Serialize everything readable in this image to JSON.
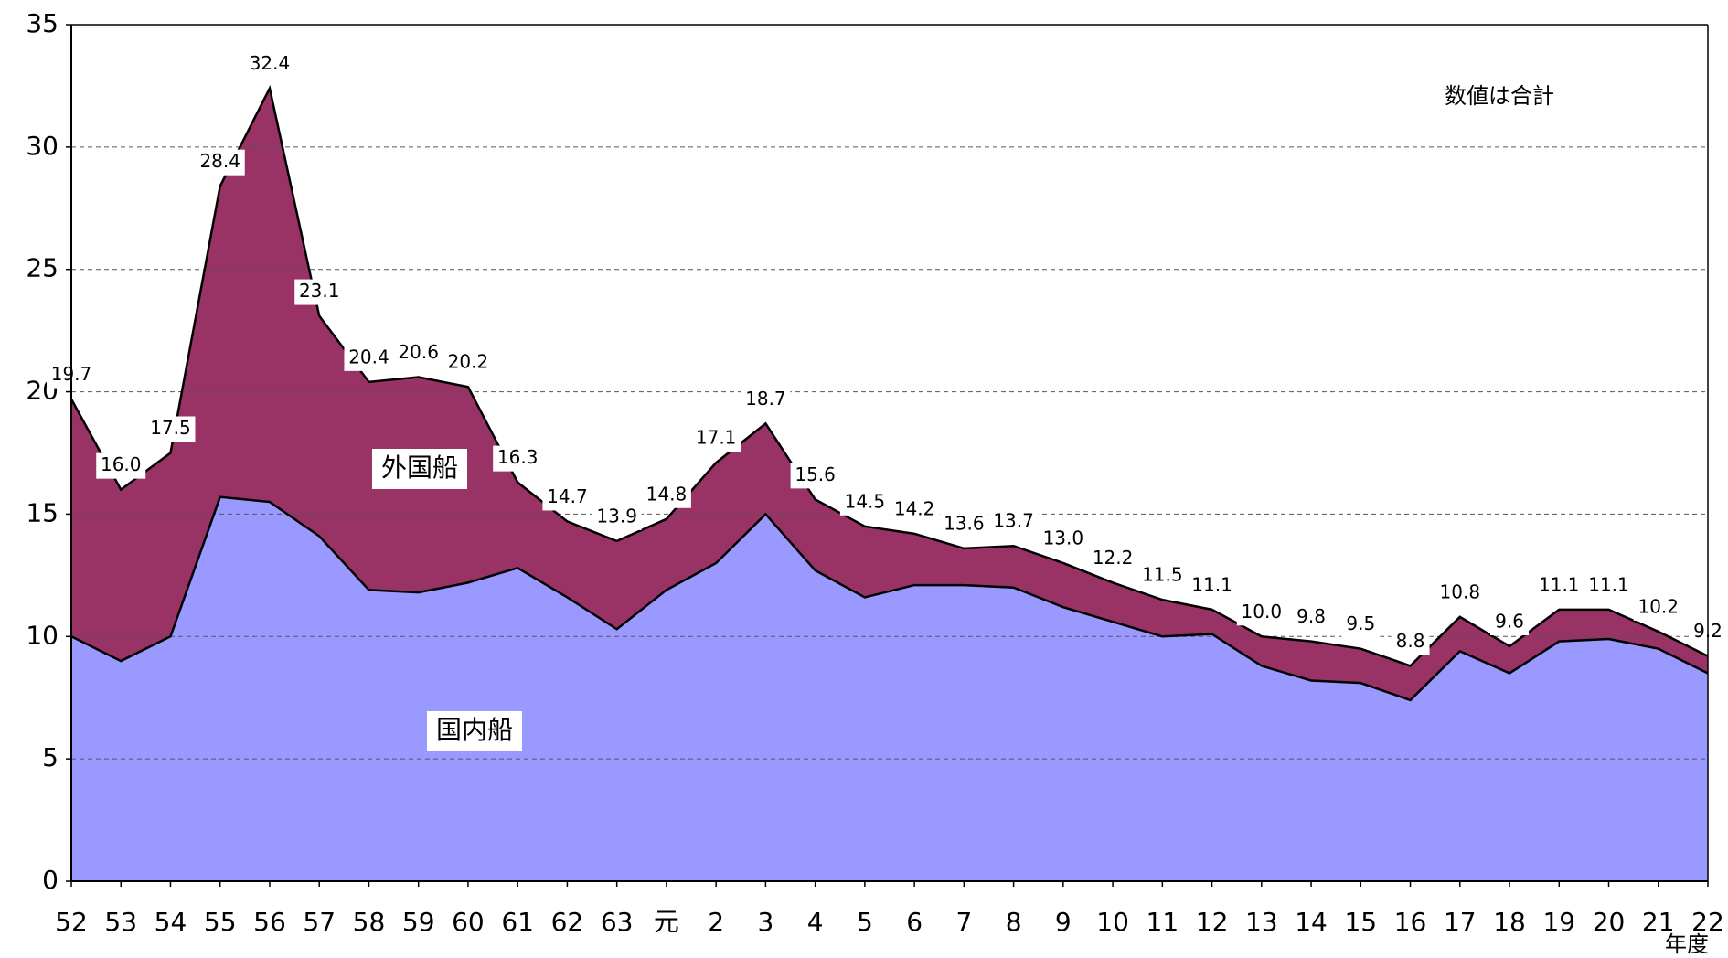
{
  "chart_data": {
    "type": "stacked_area",
    "annotation": "数値は合計",
    "x_label": "年度",
    "categories": [
      "52",
      "53",
      "54",
      "55",
      "56",
      "57",
      "58",
      "59",
      "60",
      "61",
      "62",
      "63",
      "元",
      "2",
      "3",
      "4",
      "5",
      "6",
      "7",
      "8",
      "9",
      "10",
      "11",
      "12",
      "13",
      "14",
      "15",
      "16",
      "17",
      "18",
      "19",
      "20",
      "21",
      "22"
    ],
    "series": [
      {
        "name": "国内船",
        "color": "#9999ff",
        "values": [
          10.0,
          9.0,
          10.0,
          15.7,
          15.5,
          14.1,
          11.9,
          11.8,
          12.2,
          12.8,
          11.6,
          10.3,
          11.9,
          13.0,
          15.0,
          12.7,
          11.6,
          12.1,
          12.1,
          12.0,
          11.2,
          10.6,
          10.0,
          10.1,
          8.8,
          8.2,
          8.1,
          7.4,
          9.4,
          8.5,
          9.8,
          9.9,
          9.5,
          8.5
        ]
      },
      {
        "name": "外国船",
        "color": "#993366",
        "values": [
          9.7,
          7.0,
          7.5,
          12.7,
          16.9,
          9.0,
          8.5,
          8.8,
          8.0,
          3.5,
          3.1,
          3.6,
          2.9,
          4.1,
          3.7,
          2.9,
          2.9,
          2.1,
          1.5,
          1.7,
          1.8,
          1.6,
          1.5,
          1.0,
          1.2,
          1.6,
          1.4,
          1.4,
          1.4,
          1.1,
          1.3,
          1.2,
          0.7,
          0.7
        ]
      }
    ],
    "totals": [
      19.7,
      16.0,
      17.5,
      28.4,
      32.4,
      23.1,
      20.4,
      20.6,
      20.2,
      16.3,
      14.7,
      13.9,
      14.8,
      17.1,
      18.7,
      15.6,
      14.5,
      14.2,
      13.6,
      13.7,
      13.0,
      12.2,
      11.5,
      11.1,
      10.0,
      9.8,
      9.5,
      8.8,
      10.8,
      9.6,
      11.1,
      11.1,
      10.2,
      9.2
    ],
    "value_labels": [
      "19.7",
      "16.0",
      "17.5",
      "28.4",
      "32.4",
      "23.1",
      "20.4",
      "20.6",
      "20.2",
      "16.3",
      "14.7",
      "13.9",
      "14.8",
      "17.1",
      "18.7",
      "15.6",
      "14.5",
      "14.2",
      "13.6",
      "13.7",
      "13.0",
      "12.2",
      "11.5",
      "11.1",
      "10.0",
      "9.8",
      "9.5",
      "8.8",
      "10.8",
      "9.6",
      "11.1",
      "11.1",
      "10.2",
      "9.2"
    ],
    "ylim": [
      0,
      35
    ],
    "yticks": [
      0,
      5,
      10,
      15,
      20,
      25,
      30,
      35
    ],
    "grid": true
  }
}
